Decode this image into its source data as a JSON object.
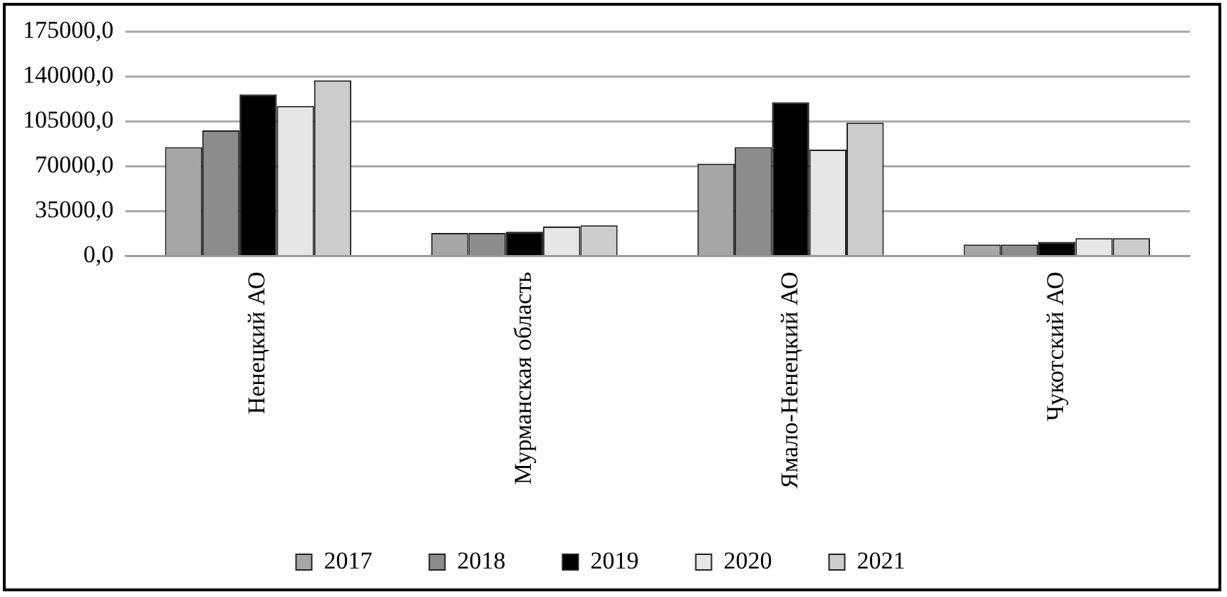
{
  "chart_data": {
    "type": "bar",
    "categories": [
      "Ненецкий АО",
      "Мурманская область",
      "Ямало-Ненецкий АО",
      "Чукотский АО"
    ],
    "series": [
      {
        "name": "2017",
        "color": "#a6a6a6",
        "values": [
          85000,
          18000,
          72000,
          9000
        ]
      },
      {
        "name": "2018",
        "color": "#8c8c8c",
        "values": [
          98000,
          18000,
          85000,
          9000
        ]
      },
      {
        "name": "2019",
        "color": "#000000",
        "values": [
          126000,
          19000,
          120000,
          11000
        ]
      },
      {
        "name": "2020",
        "color": "#e6e6e6",
        "values": [
          117000,
          23000,
          83000,
          14000
        ]
      },
      {
        "name": "2021",
        "color": "#cccccc",
        "values": [
          137000,
          24000,
          104000,
          14000
        ]
      }
    ],
    "ylim": [
      0,
      175000
    ],
    "yticks": [
      {
        "value": 0,
        "label": "0,0"
      },
      {
        "value": 35000,
        "label": "35000,0"
      },
      {
        "value": 70000,
        "label": "70000,0"
      },
      {
        "value": 105000,
        "label": "105000,0"
      },
      {
        "value": 140000,
        "label": "140000,0"
      },
      {
        "value": 175000,
        "label": "175000,0"
      }
    ],
    "grid": "y",
    "legend": "bottom"
  }
}
